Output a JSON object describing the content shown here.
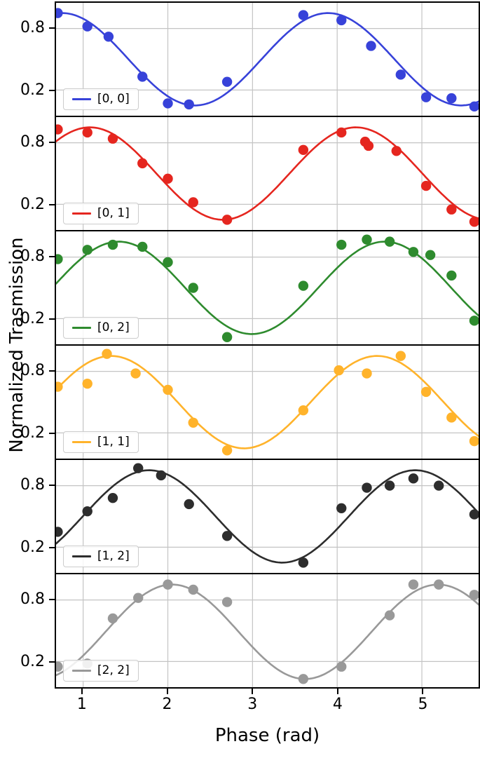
{
  "chart_data": {
    "type": "line",
    "title": "",
    "xlabel": "Phase (rad)",
    "ylabel": "Normalized Trasmission",
    "xlim": [
      0.68,
      5.67
    ],
    "ylim": [
      -0.05,
      1.05
    ],
    "x_ticks": [
      1,
      2,
      3,
      4,
      5
    ],
    "x_tick_labels": [
      "1",
      "2",
      "3",
      "4",
      "5"
    ],
    "y_ticks": [
      0.8,
      0.2
    ],
    "y_tick_labels": [
      "0.8",
      "0.2"
    ],
    "grid": true,
    "grid_color": "#c4c4c4",
    "axis_color": "#000000",
    "legend_position": "lower left",
    "curve_model": "y = offset + amplitude * cos(2*pi*(x - peak_x)/period)",
    "subplots": [
      {
        "label": "[0, 0]",
        "color": "#3742d9",
        "fit": {
          "amplitude": 0.45,
          "offset": 0.5,
          "period": 3.1416,
          "peak_x": 0.75
        },
        "points": [
          [
            0.7,
            0.95
          ],
          [
            1.05,
            0.82
          ],
          [
            1.3,
            0.72
          ],
          [
            1.7,
            0.33
          ],
          [
            2.0,
            0.07
          ],
          [
            2.25,
            0.06
          ],
          [
            2.7,
            0.28
          ],
          [
            3.6,
            0.93
          ],
          [
            4.05,
            0.88
          ],
          [
            4.4,
            0.63
          ],
          [
            4.75,
            0.35
          ],
          [
            5.05,
            0.13
          ],
          [
            5.35,
            0.12
          ],
          [
            5.62,
            0.04
          ]
        ]
      },
      {
        "label": "[0, 1]",
        "color": "#e5261f",
        "fit": {
          "amplitude": 0.45,
          "offset": 0.5,
          "period": 3.1416,
          "peak_x": 1.08
        },
        "points": [
          [
            0.7,
            0.93
          ],
          [
            1.05,
            0.9
          ],
          [
            1.35,
            0.84
          ],
          [
            1.7,
            0.6
          ],
          [
            2.0,
            0.45
          ],
          [
            2.3,
            0.22
          ],
          [
            2.7,
            0.05
          ],
          [
            3.6,
            0.73
          ],
          [
            4.05,
            0.9
          ],
          [
            4.33,
            0.81
          ],
          [
            4.37,
            0.77
          ],
          [
            4.7,
            0.72
          ],
          [
            5.05,
            0.38
          ],
          [
            5.35,
            0.15
          ],
          [
            5.62,
            0.03
          ]
        ]
      },
      {
        "label": "[0, 2]",
        "color": "#2e8b2e",
        "fit": {
          "amplitude": 0.45,
          "offset": 0.5,
          "period": 3.1416,
          "peak_x": 1.42
        },
        "points": [
          [
            0.7,
            0.78
          ],
          [
            1.05,
            0.87
          ],
          [
            1.35,
            0.92
          ],
          [
            1.7,
            0.9
          ],
          [
            2.0,
            0.75
          ],
          [
            2.3,
            0.5
          ],
          [
            2.7,
            0.02
          ],
          [
            3.6,
            0.52
          ],
          [
            4.05,
            0.92
          ],
          [
            4.35,
            0.97
          ],
          [
            4.62,
            0.95
          ],
          [
            4.9,
            0.85
          ],
          [
            5.1,
            0.82
          ],
          [
            5.35,
            0.62
          ],
          [
            5.62,
            0.18
          ]
        ]
      },
      {
        "label": "[1, 1]",
        "color": "#ffb32b",
        "fit": {
          "amplitude": 0.45,
          "offset": 0.5,
          "period": 3.1416,
          "peak_x": 1.33
        },
        "points": [
          [
            0.7,
            0.65
          ],
          [
            1.05,
            0.68
          ],
          [
            1.28,
            0.97
          ],
          [
            1.62,
            0.78
          ],
          [
            2.0,
            0.62
          ],
          [
            2.3,
            0.3
          ],
          [
            2.7,
            0.03
          ],
          [
            3.6,
            0.42
          ],
          [
            4.02,
            0.81
          ],
          [
            4.35,
            0.78
          ],
          [
            4.75,
            0.95
          ],
          [
            5.05,
            0.6
          ],
          [
            5.35,
            0.35
          ],
          [
            5.62,
            0.12
          ]
        ]
      },
      {
        "label": "[1, 2]",
        "color": "#2d2d2d",
        "fit": {
          "amplitude": 0.45,
          "offset": 0.5,
          "period": 3.1416,
          "peak_x": 1.78
        },
        "points": [
          [
            0.7,
            0.35
          ],
          [
            1.05,
            0.55
          ],
          [
            1.35,
            0.68
          ],
          [
            1.65,
            0.97
          ],
          [
            1.92,
            0.9
          ],
          [
            2.25,
            0.62
          ],
          [
            2.7,
            0.31
          ],
          [
            3.6,
            0.05
          ],
          [
            4.05,
            0.58
          ],
          [
            4.35,
            0.78
          ],
          [
            4.62,
            0.8
          ],
          [
            4.9,
            0.87
          ],
          [
            5.2,
            0.8
          ],
          [
            5.62,
            0.52
          ]
        ]
      },
      {
        "label": "[2, 2]",
        "color": "#999999",
        "fit": {
          "amplitude": 0.46,
          "offset": 0.49,
          "period": 3.1416,
          "peak_x": 2.05
        },
        "points": [
          [
            0.7,
            0.15
          ],
          [
            1.05,
            0.18
          ],
          [
            1.35,
            0.62
          ],
          [
            1.65,
            0.82
          ],
          [
            2.0,
            0.95
          ],
          [
            2.3,
            0.9
          ],
          [
            2.7,
            0.78
          ],
          [
            3.6,
            0.03
          ],
          [
            4.05,
            0.15
          ],
          [
            4.62,
            0.65
          ],
          [
            4.9,
            0.95
          ],
          [
            5.2,
            0.95
          ],
          [
            5.62,
            0.85
          ]
        ]
      }
    ]
  }
}
